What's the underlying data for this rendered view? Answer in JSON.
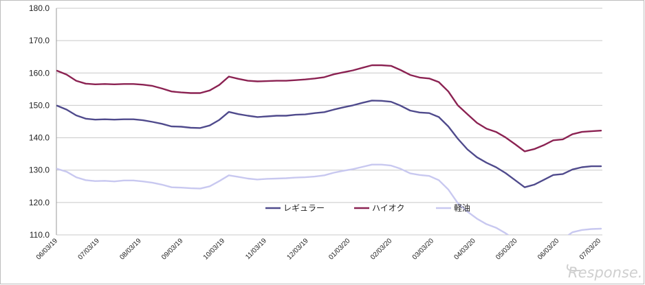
{
  "chart_data": {
    "type": "line",
    "ylim": [
      110,
      180
    ],
    "y_ticks": [
      "110.0",
      "120.0",
      "130.0",
      "140.0",
      "150.0",
      "160.0",
      "170.0",
      "180.0"
    ],
    "x_tick_labels": [
      "06/03/19",
      "07/03/19",
      "08/03/19",
      "09/03/19",
      "10/03/19",
      "11/03/19",
      "12/03/19",
      "01/03/20",
      "02/03/20",
      "03/03/20",
      "04/03/20",
      "05/03/20",
      "06/03/20",
      "07/03/20"
    ],
    "grid": "horizontal",
    "legend_position": "inside-bottom-right",
    "series": [
      {
        "name": "レギュラー",
        "color": "#4f4a8c",
        "values": [
          149.9,
          148.7,
          146.9,
          145.9,
          145.6,
          145.7,
          145.6,
          145.7,
          145.7,
          145.4,
          144.9,
          144.3,
          143.5,
          143.4,
          143.1,
          143.0,
          143.8,
          145.5,
          148.0,
          147.3,
          146.8,
          146.4,
          146.6,
          146.8,
          146.8,
          147.1,
          147.2,
          147.6,
          147.9,
          148.7,
          149.4,
          150.0,
          150.8,
          151.5,
          151.4,
          151.1,
          149.9,
          148.4,
          147.8,
          147.6,
          146.4,
          143.5,
          139.7,
          136.4,
          134.0,
          132.3,
          130.9,
          129.1,
          126.9,
          124.7,
          125.5,
          127.0,
          128.5,
          128.8,
          130.2,
          130.9,
          131.2,
          131.2
        ]
      },
      {
        "name": "ハイオク",
        "color": "#8b2252",
        "values": [
          160.7,
          159.5,
          157.6,
          156.7,
          156.5,
          156.6,
          156.5,
          156.6,
          156.6,
          156.4,
          156.0,
          155.2,
          154.3,
          154.0,
          153.8,
          153.8,
          154.6,
          156.3,
          158.9,
          158.2,
          157.6,
          157.4,
          157.5,
          157.6,
          157.6,
          157.8,
          158.0,
          158.3,
          158.7,
          159.6,
          160.2,
          160.8,
          161.6,
          162.4,
          162.4,
          162.2,
          160.9,
          159.4,
          158.6,
          158.3,
          157.2,
          154.3,
          150.0,
          147.3,
          144.6,
          142.8,
          141.8,
          140.1,
          138.0,
          135.8,
          136.5,
          137.7,
          139.2,
          139.5,
          141.1,
          141.8,
          142.0,
          142.2
        ]
      },
      {
        "name": "軽油",
        "color": "#c8c8f0",
        "values": [
          130.4,
          129.5,
          127.8,
          126.9,
          126.6,
          126.7,
          126.5,
          126.8,
          126.8,
          126.5,
          126.1,
          125.5,
          124.7,
          124.6,
          124.4,
          124.3,
          125.0,
          126.6,
          128.4,
          127.9,
          127.4,
          127.1,
          127.3,
          127.4,
          127.5,
          127.7,
          127.8,
          128.0,
          128.4,
          129.2,
          129.8,
          130.3,
          131.0,
          131.7,
          131.7,
          131.4,
          130.4,
          129.0,
          128.5,
          128.2,
          126.9,
          124.0,
          119.8,
          117.2,
          115.0,
          113.3,
          112.2,
          110.5,
          108.5,
          106.5,
          106.0,
          106.5,
          107.8,
          108.7,
          110.8,
          111.5,
          111.8,
          111.9
        ]
      }
    ]
  },
  "watermark": "Response."
}
